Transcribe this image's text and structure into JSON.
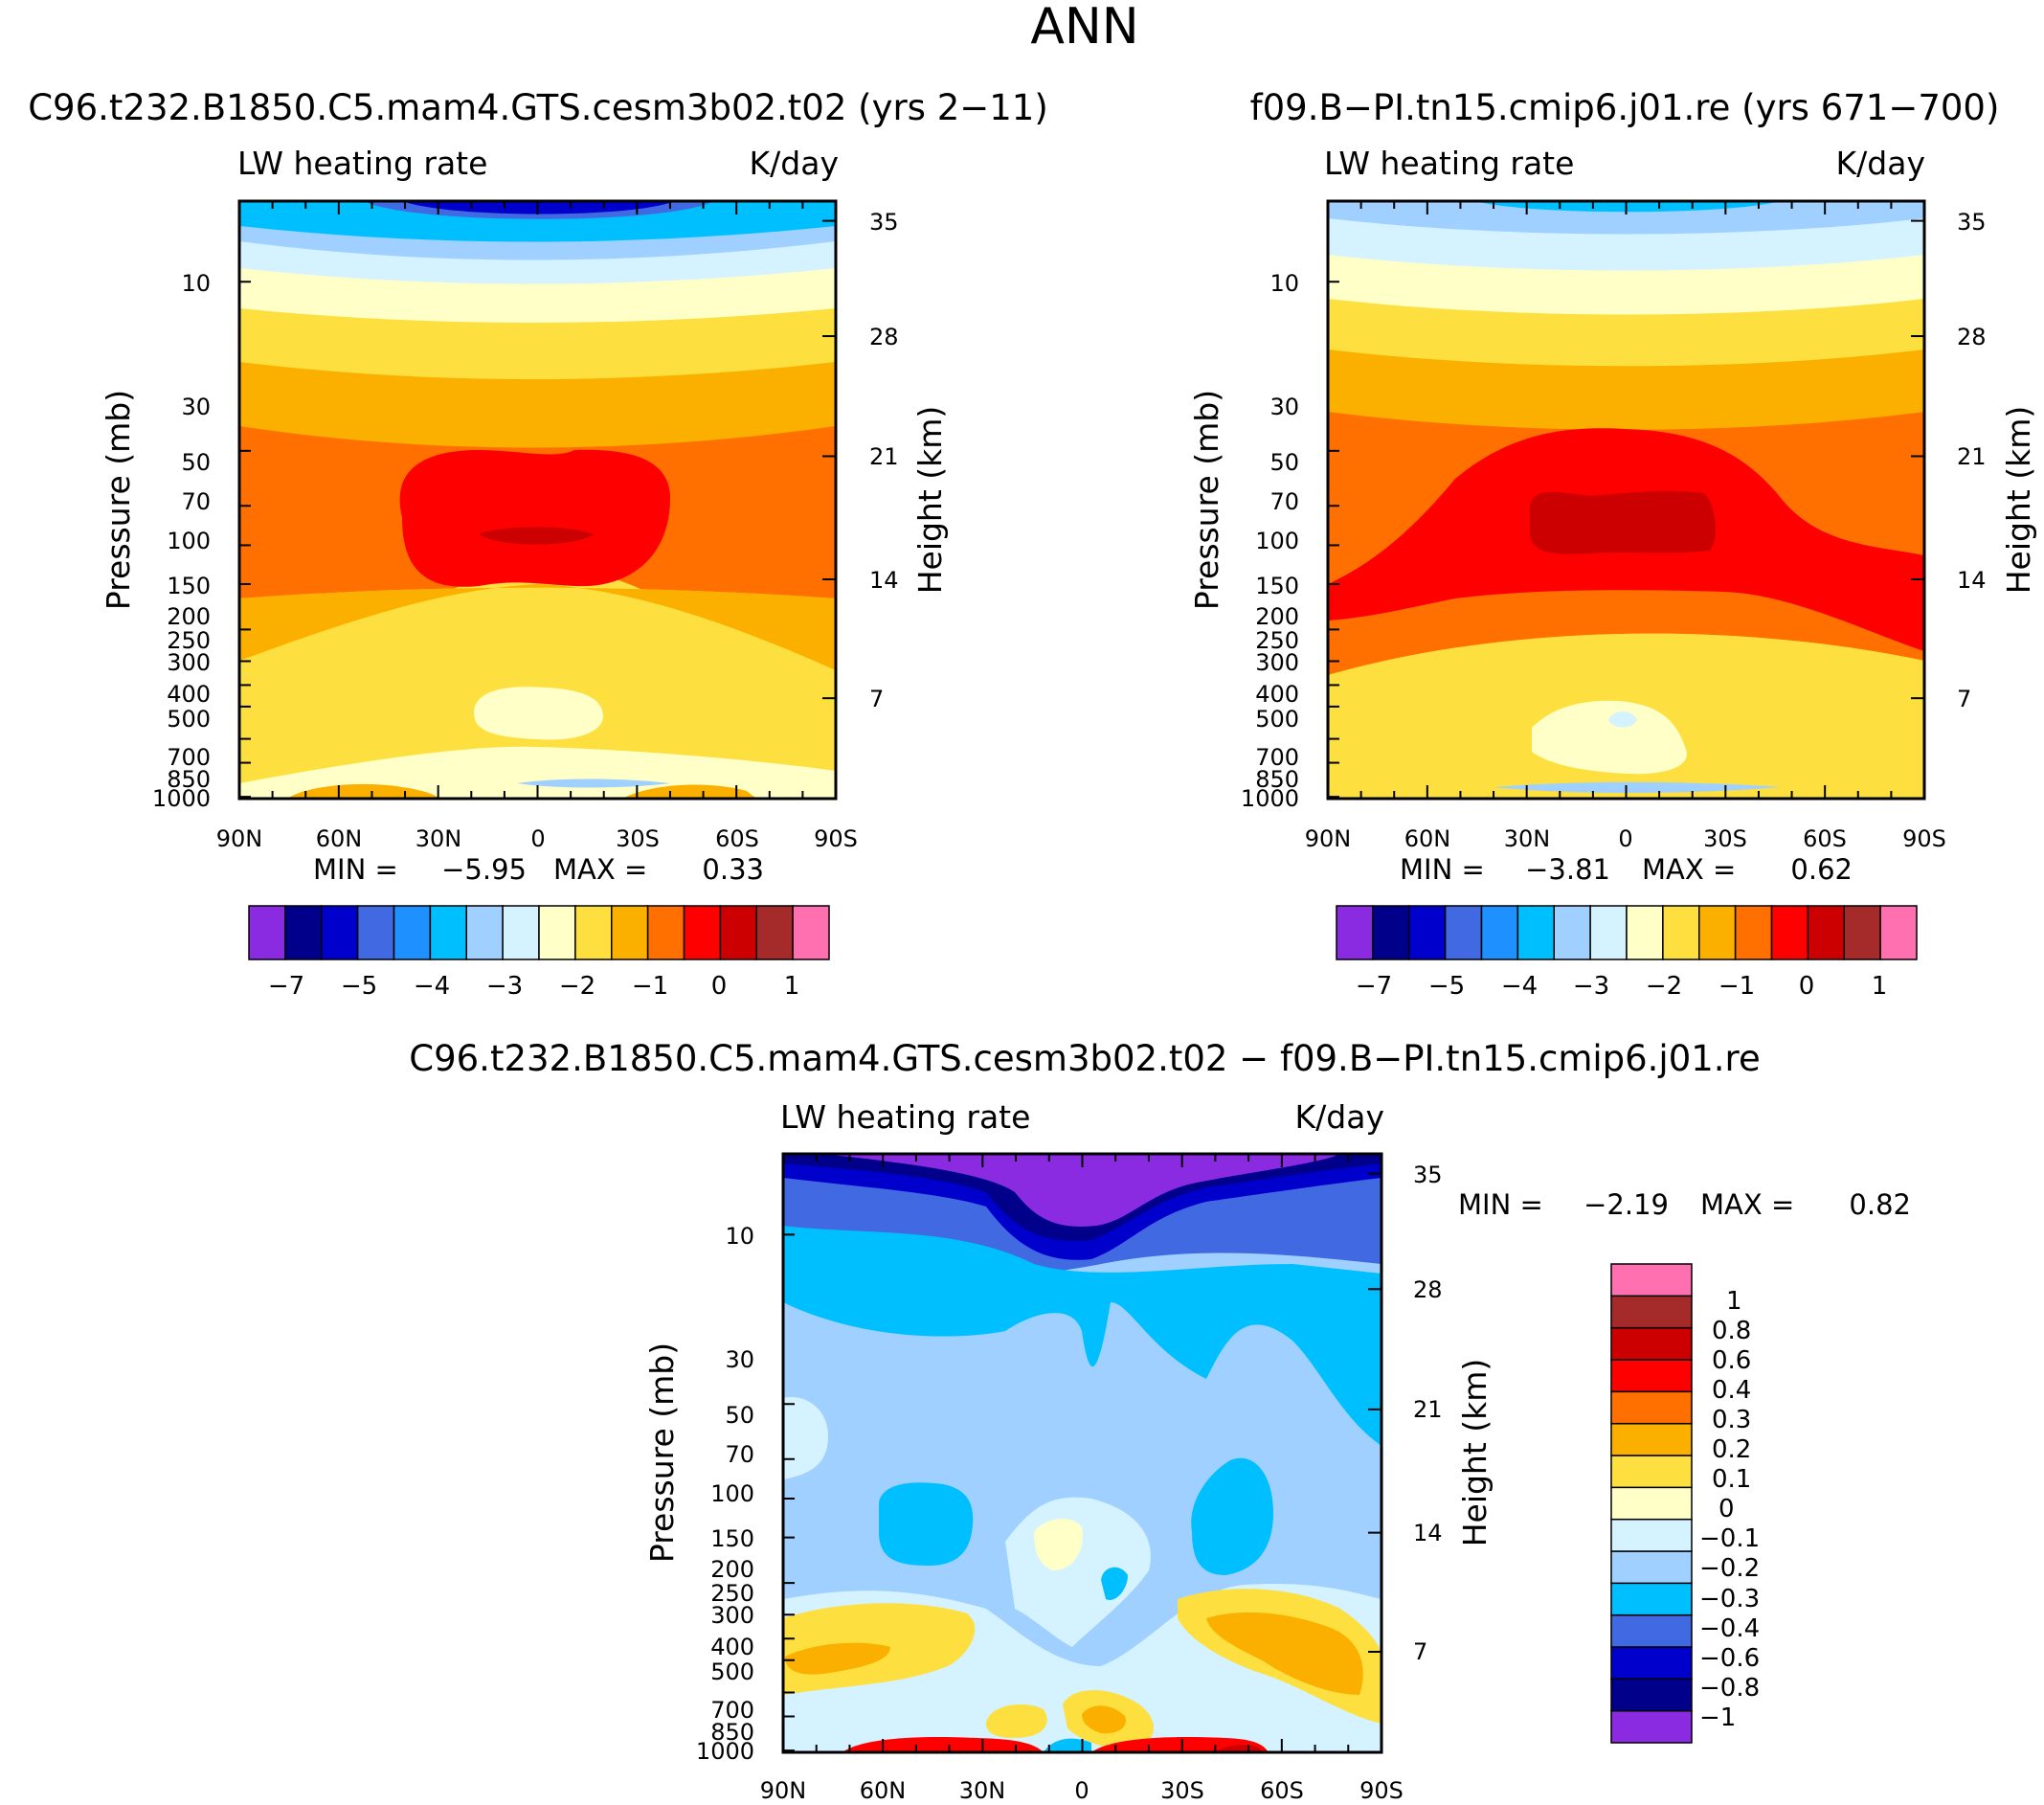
{
  "figure": {
    "title": "ANN"
  },
  "chart_data": [
    {
      "type": "heatmap",
      "title": "C96.t232.B1850.C5.mam4.GTS.cesm3b02.t02 (yrs 2−11)",
      "variable_label": "LW heating rate",
      "units_label": "K/day",
      "ylabel": "Pressure (mb)",
      "ylabel_right": "Height (km)",
      "xticks": [
        "90N",
        "60N",
        "30N",
        "0",
        "30S",
        "60S",
        "90S"
      ],
      "yticks": [
        "10",
        "30",
        "50",
        "70",
        "100",
        "150",
        "200",
        "250",
        "300",
        "400",
        "500",
        "700",
        "850",
        "1000"
      ],
      "yticks_right": [
        "35",
        "28",
        "21",
        "14",
        "7"
      ],
      "min_label": "MIN =",
      "min_value": "−5.95",
      "max_label": "MAX =",
      "max_value": "0.33",
      "colorbar": {
        "orientation": "horizontal",
        "colors": [
          "#8a2be2",
          "#00008b",
          "#0000cd",
          "#4169e1",
          "#1e90ff",
          "#00bfff",
          "#a0d0ff",
          "#d4f2ff",
          "#ffffc8",
          "#fde040",
          "#fbb000",
          "#ff7000",
          "#ff0000",
          "#cc0000",
          "#a52a2a",
          "#ff70b0"
        ],
        "tick_labels": [
          "−7",
          "−5",
          "−4",
          "−3",
          "−2",
          "−1",
          "0",
          "1"
        ]
      }
    },
    {
      "type": "heatmap",
      "title": "f09.B−PI.tn15.cmip6.j01.re (yrs 671−700)",
      "variable_label": "LW heating rate",
      "units_label": "K/day",
      "ylabel": "Pressure (mb)",
      "ylabel_right": "Height (km)",
      "xticks": [
        "90N",
        "60N",
        "30N",
        "0",
        "30S",
        "60S",
        "90S"
      ],
      "yticks": [
        "10",
        "30",
        "50",
        "70",
        "100",
        "150",
        "200",
        "250",
        "300",
        "400",
        "500",
        "700",
        "850",
        "1000"
      ],
      "yticks_right": [
        "35",
        "28",
        "21",
        "14",
        "7"
      ],
      "min_label": "MIN =",
      "min_value": "−3.81",
      "max_label": "MAX =",
      "max_value": "0.62",
      "colorbar": {
        "orientation": "horizontal",
        "colors": [
          "#8a2be2",
          "#00008b",
          "#0000cd",
          "#4169e1",
          "#1e90ff",
          "#00bfff",
          "#a0d0ff",
          "#d4f2ff",
          "#ffffc8",
          "#fde040",
          "#fbb000",
          "#ff7000",
          "#ff0000",
          "#cc0000",
          "#a52a2a",
          "#ff70b0"
        ],
        "tick_labels": [
          "−7",
          "−5",
          "−4",
          "−3",
          "−2",
          "−1",
          "0",
          "1"
        ]
      }
    },
    {
      "type": "heatmap",
      "title": "C96.t232.B1850.C5.mam4.GTS.cesm3b02.t02 − f09.B−PI.tn15.cmip6.j01.re",
      "variable_label": "LW heating rate",
      "units_label": "K/day",
      "ylabel": "Pressure (mb)",
      "ylabel_right": "Height (km)",
      "xticks": [
        "90N",
        "60N",
        "30N",
        "0",
        "30S",
        "60S",
        "90S"
      ],
      "yticks": [
        "10",
        "30",
        "50",
        "70",
        "100",
        "150",
        "200",
        "250",
        "300",
        "400",
        "500",
        "700",
        "850",
        "1000"
      ],
      "yticks_right": [
        "35",
        "28",
        "21",
        "14",
        "7"
      ],
      "min_label": "MIN =",
      "min_value": "−2.19",
      "max_label": "MAX =",
      "max_value": "0.82",
      "colorbar": {
        "orientation": "vertical",
        "colors": [
          "#8a2be2",
          "#00008b",
          "#0000cd",
          "#4169e1",
          "#00bfff",
          "#a0d0ff",
          "#d4f2ff",
          "#ffffc8",
          "#fde040",
          "#fbb000",
          "#ff7000",
          "#ff0000",
          "#cc0000",
          "#a52a2a",
          "#ff70b0"
        ],
        "tick_labels": [
          "−1",
          "−0.8",
          "−0.6",
          "−0.4",
          "−0.3",
          "−0.2",
          "−0.1",
          "0",
          "0.1",
          "0.2",
          "0.3",
          "0.4",
          "0.6",
          "0.8",
          "1"
        ]
      }
    }
  ]
}
